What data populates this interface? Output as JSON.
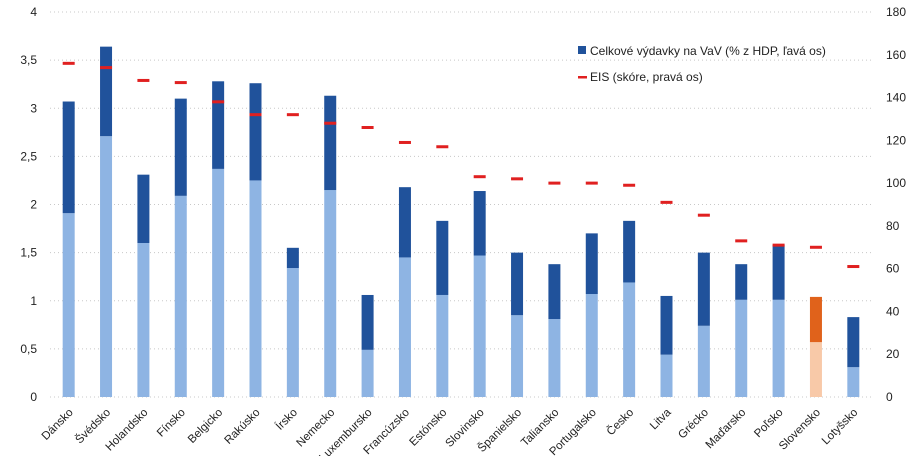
{
  "chart_data": {
    "type": "bar",
    "stacked": true,
    "categories": [
      "Dánsko",
      "Švédsko",
      "Holandsko",
      "Fínsko",
      "Belgicko",
      "Rakúsko",
      "Írsko",
      "Nemecko",
      "Luxembursko",
      "Francúzsko",
      "Estónsko",
      "Slovinsko",
      "Španielsko",
      "Taliansko",
      "Portugalsko",
      "Česko",
      "Litva",
      "Grécko",
      "Maďarsko",
      "Poľsko",
      "Slovensko",
      "Lotyšsko"
    ],
    "series": [
      {
        "values": [
          1.91,
          2.71,
          1.6,
          2.09,
          2.37,
          2.25,
          1.34,
          2.15,
          0.49,
          1.45,
          1.06,
          1.47,
          0.85,
          0.81,
          1.07,
          1.19,
          0.44,
          0.74,
          1.01,
          1.01,
          0.57,
          0.31
        ],
        "color": "#8eb4e3"
      },
      {
        "values": [
          1.16,
          0.93,
          0.71,
          1.01,
          0.91,
          1.01,
          0.21,
          0.98,
          0.57,
          0.73,
          0.77,
          0.67,
          0.65,
          0.57,
          0.63,
          0.64,
          0.61,
          0.76,
          0.37,
          0.57,
          0.47,
          0.52
        ],
        "color": "#20529b"
      }
    ],
    "highlight": {
      "category": "Slovensko",
      "colors": [
        "#f8c9a8",
        "#e0621b"
      ]
    },
    "eis": {
      "name": "EIS (skóre, pravá os)",
      "values": [
        156,
        154,
        148,
        147,
        138,
        132,
        132,
        128,
        126,
        119,
        117,
        103,
        102,
        100,
        100,
        99,
        91,
        85,
        73,
        71,
        70,
        61
      ],
      "color": "#e02020"
    },
    "legend": {
      "bar_label": "Celkové výdavky na VaV (% z HDP, ľavá os)",
      "line_label": "EIS (skóre, pravá os)"
    },
    "y_left": {
      "min": 0,
      "max": 4,
      "ticks": [
        "0",
        "0,5",
        "1",
        "1,5",
        "2",
        "2,5",
        "3",
        "3,5",
        "4"
      ]
    },
    "y_right": {
      "min": 0,
      "max": 180,
      "ticks": [
        "0",
        "20",
        "40",
        "60",
        "80",
        "100",
        "120",
        "140",
        "160",
        "180"
      ]
    },
    "grid": "horizontal dotted",
    "legend_position": "top-right"
  }
}
